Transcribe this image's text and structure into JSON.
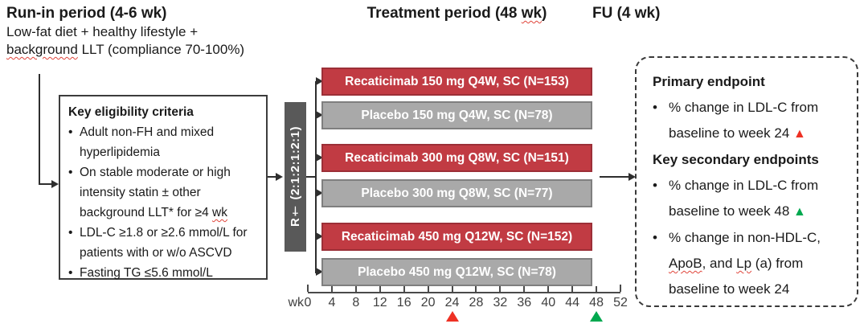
{
  "colors": {
    "active_arm": "#c13b43",
    "placebo_arm": "#a9a9a9",
    "randomization_bar": "#595959",
    "primary_marker_red": "#ee3124",
    "secondary_marker_green": "#00a84f",
    "squiggle_red": "#e0443a"
  },
  "runin": {
    "title": "Run-in period (4-6 wk)",
    "line1": "Low-fat diet + healthy lifestyle +",
    "line2_sq": "background",
    "line2_rest": " LLT (compliance 70-100%)"
  },
  "headers": {
    "treatment_pre": "Treatment period (48 ",
    "treatment_sq": "wk",
    "treatment_post": ")",
    "fu": "FU (4 wk)"
  },
  "eligibility": {
    "title": "Key eligibility criteria",
    "bullet_char": "•",
    "items": [
      {
        "text": "Adult non-FH and mixed hyperlipidemia"
      },
      {
        "text_pre": "On stable moderate or high intensity statin ± other background LLT* for ≥4 ",
        "text_sq": "wk"
      },
      {
        "text": "LDL-C ≥1.8 or ≥2.6 mmol/L for patients with or w/o ASCVD"
      },
      {
        "text": "Fasting TG ≤5.6 mmol/L"
      }
    ]
  },
  "randomization": {
    "label": "R† (2:1:2:1:2:1)"
  },
  "arms": [
    {
      "label": "Recaticimab 150 mg Q4W, SC (N=153)",
      "type": "active"
    },
    {
      "label": "Placebo 150 mg Q4W, SC (N=78)",
      "type": "placebo"
    },
    {
      "label": "Recaticimab 300 mg Q8W, SC (N=151)",
      "type": "active"
    },
    {
      "label": "Placebo 300 mg Q8W, SC (N=77)",
      "type": "placebo"
    },
    {
      "label": "Recaticimab 450 mg Q12W, SC (N=152)",
      "type": "active"
    },
    {
      "label": "Placebo 450 mg Q12W, SC (N=78)",
      "type": "placebo"
    }
  ],
  "axis": {
    "unit_label": "wk",
    "tick_weeks": [
      0,
      4,
      8,
      12,
      16,
      20,
      24,
      28,
      32,
      36,
      40,
      44,
      48,
      52
    ],
    "max_week": 52,
    "markers": [
      {
        "week": 24,
        "color_key": "primary_marker_red",
        "shape": "triangle-up"
      },
      {
        "week": 48,
        "color_key": "secondary_marker_green",
        "shape": "triangle-up"
      }
    ]
  },
  "endpoints": {
    "bullet_char": "•",
    "primary_title": "Primary endpoint",
    "primary_item_pre": "% change in LDL-C from baseline to week 24 ",
    "primary_marker": "▲",
    "secondary_title": "Key secondary endpoints",
    "secondary_item1_pre": "% change in LDL-C from baseline to week 48 ",
    "secondary_marker": "▲",
    "secondary_item2_p1": "% change in non-HDL-C, ",
    "secondary_item2_sq1": "ApoB",
    "secondary_item2_p2": ", and ",
    "secondary_item2_sq2": "Lp",
    "secondary_item2_p3": " (a) from baseline to week 24"
  }
}
